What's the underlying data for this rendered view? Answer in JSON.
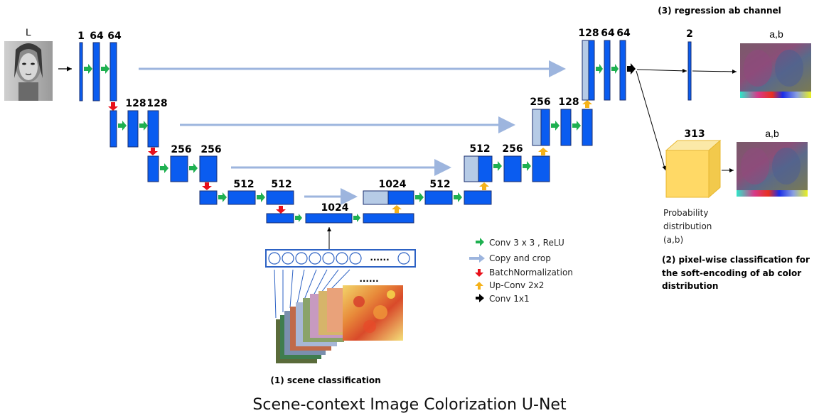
{
  "input_label": "L",
  "encoder": {
    "level1": [
      "1",
      "64",
      "64"
    ],
    "level2": [
      "128",
      "128"
    ],
    "level3": [
      "256",
      "256"
    ],
    "level4": [
      "512",
      "512"
    ],
    "bottleneck": "1024"
  },
  "decoder": {
    "level4": [
      "1024",
      "512"
    ],
    "level3": [
      "512",
      "256"
    ],
    "level2": [
      "256",
      "128"
    ],
    "level1": [
      "128",
      "64",
      "64"
    ]
  },
  "regression": {
    "title": "(3) regression ab channel",
    "channels": "2",
    "output_label": "a,b"
  },
  "classification": {
    "channels": "313",
    "output_label": "a,b",
    "prob_lines": [
      "Probability",
      "distribution",
      "(a,b)"
    ],
    "title_lines": [
      "(2) pixel-wise classification for",
      "the soft-encoding of ab color",
      "distribution"
    ]
  },
  "scene": {
    "title": "(1) scene classification",
    "vector_ellipsis": "......",
    "stack_ellipsis": "......"
  },
  "legend": [
    {
      "icon": "green-arrow-icon",
      "color": "#1eb050",
      "label": "Conv 3 x 3 , ReLU"
    },
    {
      "icon": "light-blue-arrow-icon",
      "color": "#9db5de",
      "label": "Copy and crop"
    },
    {
      "icon": "red-arrow-icon",
      "color": "#e8101a",
      "label": "BatchNormalization"
    },
    {
      "icon": "orange-arrow-icon",
      "color": "#f5b21a",
      "label": "Up-Conv 2x2"
    },
    {
      "icon": "black-arrow-icon",
      "color": "#000000",
      "label": "Conv 1x1"
    }
  ],
  "caption": "Scene-context Image Colorization U-Net",
  "colors": {
    "block": "#0a5cf0",
    "block_border": "#1a2e6e",
    "copy_block": "#b6cbe6",
    "cube": "#ffd966"
  }
}
